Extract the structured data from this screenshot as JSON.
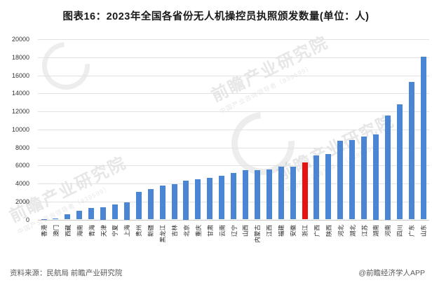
{
  "title": "图表16：2023年全国各省份无人机操控员执照颁发数量(单位：人)",
  "footer": {
    "source": "资料来源：民航局 前瞻产业研究院",
    "credit": "@前瞻经济学人APP"
  },
  "watermark": {
    "brand": "前瞻产业研究院",
    "tagline": "中国产业咨询领导者（839599）"
  },
  "colors": {
    "bar": "#4a86d4",
    "highlight": "#e81111",
    "grid": "#e2e2e2",
    "axis_text": "#333333"
  },
  "chart_data": {
    "type": "bar",
    "title": "图表16：2023年全国各省份无人机操控员执照颁发数量(单位：人)",
    "xlabel": "",
    "ylabel": "",
    "ylim": [
      0,
      20000
    ],
    "ytick_step": 2000,
    "yticks": [
      0,
      2000,
      4000,
      6000,
      8000,
      10000,
      12000,
      14000,
      16000,
      18000,
      20000
    ],
    "grid": true,
    "legend": false,
    "highlight_category": "浙江",
    "highlight_index": 22,
    "categories": [
      "香港",
      "澳门",
      "西藏",
      "海南",
      "青海",
      "天津",
      "宁夏",
      "上海",
      "贵州",
      "新疆",
      "黑龙江",
      "吉林",
      "北京",
      "重庆",
      "甘肃",
      "云南",
      "辽宁",
      "山西",
      "内蒙古",
      "江西",
      "福建",
      "安徽",
      "浙江",
      "广西",
      "陕西",
      "河北",
      "湖北",
      "江苏",
      "湖南",
      "河南",
      "四川",
      "广东",
      "山东"
    ],
    "values": [
      60,
      100,
      600,
      950,
      1250,
      1400,
      1650,
      1900,
      3100,
      3400,
      3800,
      3950,
      4350,
      4500,
      4650,
      4850,
      5200,
      5450,
      5470,
      5520,
      5830,
      5870,
      6350,
      7080,
      7240,
      8720,
      8850,
      9180,
      9440,
      11570,
      12760,
      15250,
      18030
    ]
  }
}
